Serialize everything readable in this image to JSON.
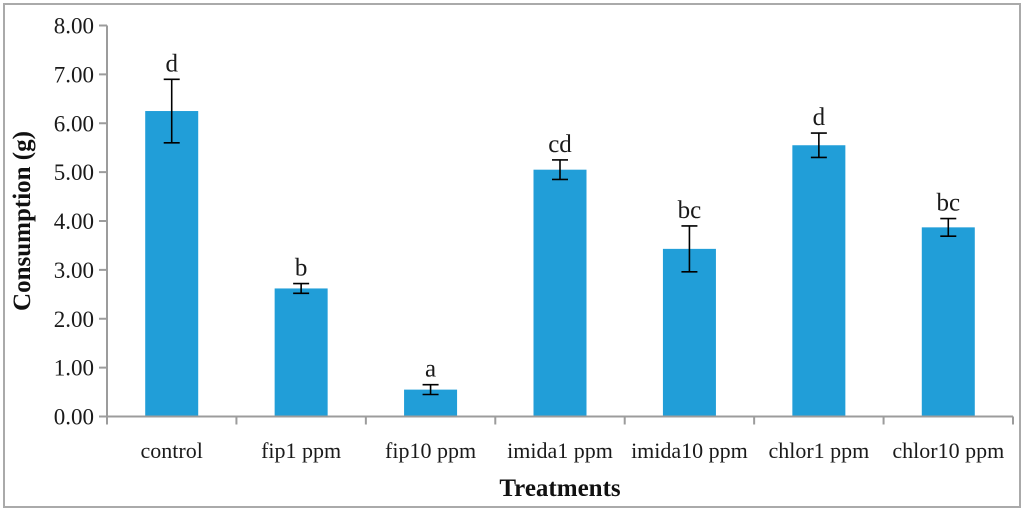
{
  "chart_data": {
    "type": "bar",
    "title": "",
    "xlabel": "Treatments",
    "ylabel": "Consumption (g)",
    "categories": [
      "control",
      "fip1 ppm",
      "fip10 ppm",
      "imida1 ppm",
      "imida10 ppm",
      "chlor1 ppm",
      "chlor10 ppm"
    ],
    "values": [
      6.25,
      2.62,
      0.55,
      5.05,
      3.43,
      5.55,
      3.87
    ],
    "errors": [
      0.65,
      0.1,
      0.1,
      0.2,
      0.47,
      0.25,
      0.18
    ],
    "sig_letters": [
      "d",
      "b",
      "a",
      "cd",
      "bc",
      "d",
      "bc"
    ],
    "ylim": [
      0,
      8
    ],
    "ytick_step": 1,
    "ytick_labels": [
      "0.00",
      "1.00",
      "2.00",
      "3.00",
      "4.00",
      "5.00",
      "6.00",
      "7.00",
      "8.00"
    ],
    "grid": "off",
    "legend": "none",
    "bar_color": "#219ED8",
    "axis_color": "#9c9c9c",
    "error_bar_color": "#000000",
    "frame_color": "#aaaaaa"
  }
}
